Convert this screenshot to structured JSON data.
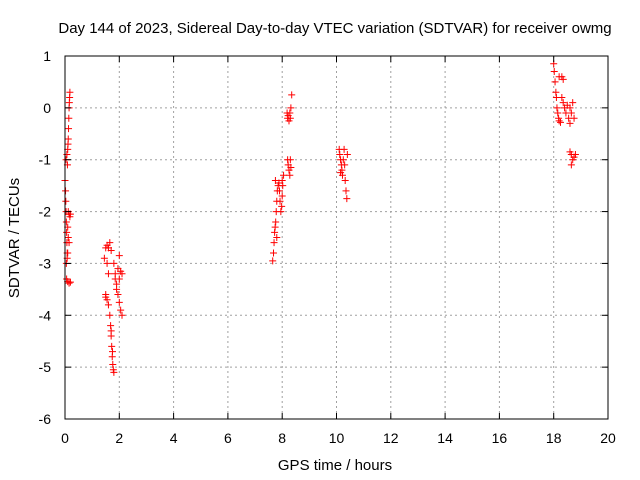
{
  "chart_data": {
    "type": "scatter",
    "title": "Day 144 of 2023, Sidereal Day-to-day VTEC variation (SDTVAR) for receiver owmg",
    "xlabel": "GPS time / hours",
    "ylabel": "SDTVAR / TECUs",
    "xlim": [
      0,
      20
    ],
    "ylim": [
      -6,
      1
    ],
    "xticks": [
      0,
      2,
      4,
      6,
      8,
      10,
      12,
      14,
      16,
      18,
      20
    ],
    "yticks": [
      -6,
      -5,
      -4,
      -3,
      -2,
      -1,
      0,
      1
    ],
    "grid": true,
    "marker": "plus",
    "marker_color": "#ff0000",
    "series": [
      {
        "name": "SDTVAR",
        "points": [
          [
            0.0,
            -1.4
          ],
          [
            0.02,
            -1.6
          ],
          [
            0.03,
            -1.8
          ],
          [
            0.04,
            -2.0
          ],
          [
            0.05,
            -2.2
          ],
          [
            0.06,
            -2.4
          ],
          [
            0.07,
            -2.6
          ],
          [
            0.08,
            -2.8
          ],
          [
            0.05,
            -3.0
          ],
          [
            0.06,
            -3.3
          ],
          [
            0.1,
            -3.35
          ],
          [
            0.15,
            -3.38
          ],
          [
            0.2,
            -3.36
          ],
          [
            0.04,
            -1.0
          ],
          [
            0.07,
            -0.9
          ],
          [
            0.1,
            -0.8
          ],
          [
            0.12,
            -0.6
          ],
          [
            0.13,
            -0.4
          ],
          [
            0.14,
            -0.2
          ],
          [
            0.15,
            0.0
          ],
          [
            0.16,
            0.1
          ],
          [
            0.18,
            0.3
          ],
          [
            0.17,
            0.2
          ],
          [
            0.11,
            -0.7
          ],
          [
            0.09,
            -1.1
          ],
          [
            0.12,
            -2.0
          ],
          [
            0.15,
            -2.05
          ],
          [
            0.18,
            -2.1
          ],
          [
            0.2,
            -2.05
          ],
          [
            0.1,
            -2.3
          ],
          [
            0.12,
            -2.5
          ],
          [
            0.15,
            -2.6
          ],
          [
            0.1,
            -2.8
          ],
          [
            0.08,
            -2.9
          ],
          [
            1.45,
            -2.9
          ],
          [
            1.5,
            -2.7
          ],
          [
            1.55,
            -2.65
          ],
          [
            1.6,
            -2.7
          ],
          [
            1.65,
            -2.6
          ],
          [
            1.7,
            -2.75
          ],
          [
            1.55,
            -3.0
          ],
          [
            1.6,
            -3.2
          ],
          [
            1.5,
            -3.6
          ],
          [
            1.55,
            -3.7
          ],
          [
            1.6,
            -3.8
          ],
          [
            1.5,
            -3.65
          ],
          [
            1.65,
            -4.0
          ],
          [
            1.68,
            -4.2
          ],
          [
            1.7,
            -4.4
          ],
          [
            1.72,
            -4.6
          ],
          [
            1.74,
            -4.8
          ],
          [
            1.76,
            -4.95
          ],
          [
            1.78,
            -5.05
          ],
          [
            1.8,
            -5.1
          ],
          [
            1.75,
            -4.7
          ],
          [
            1.7,
            -4.3
          ],
          [
            1.8,
            -3.0
          ],
          [
            1.85,
            -3.2
          ],
          [
            1.9,
            -3.4
          ],
          [
            1.95,
            -3.1
          ],
          [
            2.0,
            -3.3
          ],
          [
            2.05,
            -3.15
          ],
          [
            2.1,
            -3.2
          ],
          [
            2.0,
            -2.85
          ],
          [
            1.95,
            -3.6
          ],
          [
            2.0,
            -3.75
          ],
          [
            2.05,
            -3.9
          ],
          [
            2.1,
            -4.0
          ],
          [
            1.9,
            -3.5
          ],
          [
            1.85,
            -3.3
          ],
          [
            7.65,
            -2.95
          ],
          [
            7.68,
            -2.8
          ],
          [
            7.7,
            -2.6
          ],
          [
            7.72,
            -2.4
          ],
          [
            7.74,
            -2.3
          ],
          [
            7.76,
            -2.2
          ],
          [
            7.78,
            -2.0
          ],
          [
            7.8,
            -1.8
          ],
          [
            7.82,
            -1.6
          ],
          [
            7.85,
            -1.5
          ],
          [
            7.88,
            -1.45
          ],
          [
            7.9,
            -1.6
          ],
          [
            7.92,
            -1.8
          ],
          [
            7.95,
            -2.0
          ],
          [
            7.98,
            -1.9
          ],
          [
            8.0,
            -1.7
          ],
          [
            8.02,
            -1.5
          ],
          [
            8.05,
            -1.3
          ],
          [
            8.0,
            -1.4
          ],
          [
            7.75,
            -1.4
          ],
          [
            7.8,
            -2.5
          ],
          [
            8.2,
            -1.0
          ],
          [
            8.22,
            -1.1
          ],
          [
            8.25,
            -1.2
          ],
          [
            8.28,
            -1.3
          ],
          [
            8.3,
            -1.0
          ],
          [
            8.32,
            -1.15
          ],
          [
            8.18,
            -0.1
          ],
          [
            8.2,
            -0.2
          ],
          [
            8.25,
            -0.25
          ],
          [
            8.28,
            -0.1
          ],
          [
            8.3,
            -0.2
          ],
          [
            8.32,
            0.0
          ],
          [
            8.35,
            0.25
          ],
          [
            8.22,
            -0.15
          ],
          [
            10.1,
            -0.8
          ],
          [
            10.12,
            -0.9
          ],
          [
            10.15,
            -1.0
          ],
          [
            10.18,
            -1.1
          ],
          [
            10.2,
            -1.2
          ],
          [
            10.22,
            -1.3
          ],
          [
            10.25,
            -1.0
          ],
          [
            10.28,
            -0.8
          ],
          [
            10.3,
            -1.1
          ],
          [
            10.32,
            -1.4
          ],
          [
            10.35,
            -1.6
          ],
          [
            10.38,
            -1.75
          ],
          [
            10.4,
            -0.9
          ],
          [
            10.15,
            -1.25
          ],
          [
            18.0,
            0.85
          ],
          [
            18.02,
            0.7
          ],
          [
            18.05,
            0.5
          ],
          [
            18.08,
            0.3
          ],
          [
            18.1,
            0.2
          ],
          [
            18.12,
            0.0
          ],
          [
            18.15,
            -0.1
          ],
          [
            18.18,
            -0.2
          ],
          [
            18.2,
            -0.25
          ],
          [
            18.25,
            -0.28
          ],
          [
            18.3,
            0.6
          ],
          [
            18.35,
            0.55
          ],
          [
            18.2,
            0.6
          ],
          [
            18.3,
            0.2
          ],
          [
            18.35,
            0.1
          ],
          [
            18.4,
            0.0
          ],
          [
            18.45,
            -0.1
          ],
          [
            18.5,
            0.05
          ],
          [
            18.55,
            -0.2
          ],
          [
            18.6,
            -0.3
          ],
          [
            18.65,
            -0.1
          ],
          [
            18.7,
            0.1
          ],
          [
            18.75,
            -0.2
          ],
          [
            18.6,
            0.0
          ],
          [
            18.6,
            -0.85
          ],
          [
            18.65,
            -0.9
          ],
          [
            18.7,
            -1.0
          ],
          [
            18.75,
            -0.95
          ],
          [
            18.8,
            -0.9
          ],
          [
            18.65,
            -1.1
          ]
        ]
      }
    ]
  }
}
